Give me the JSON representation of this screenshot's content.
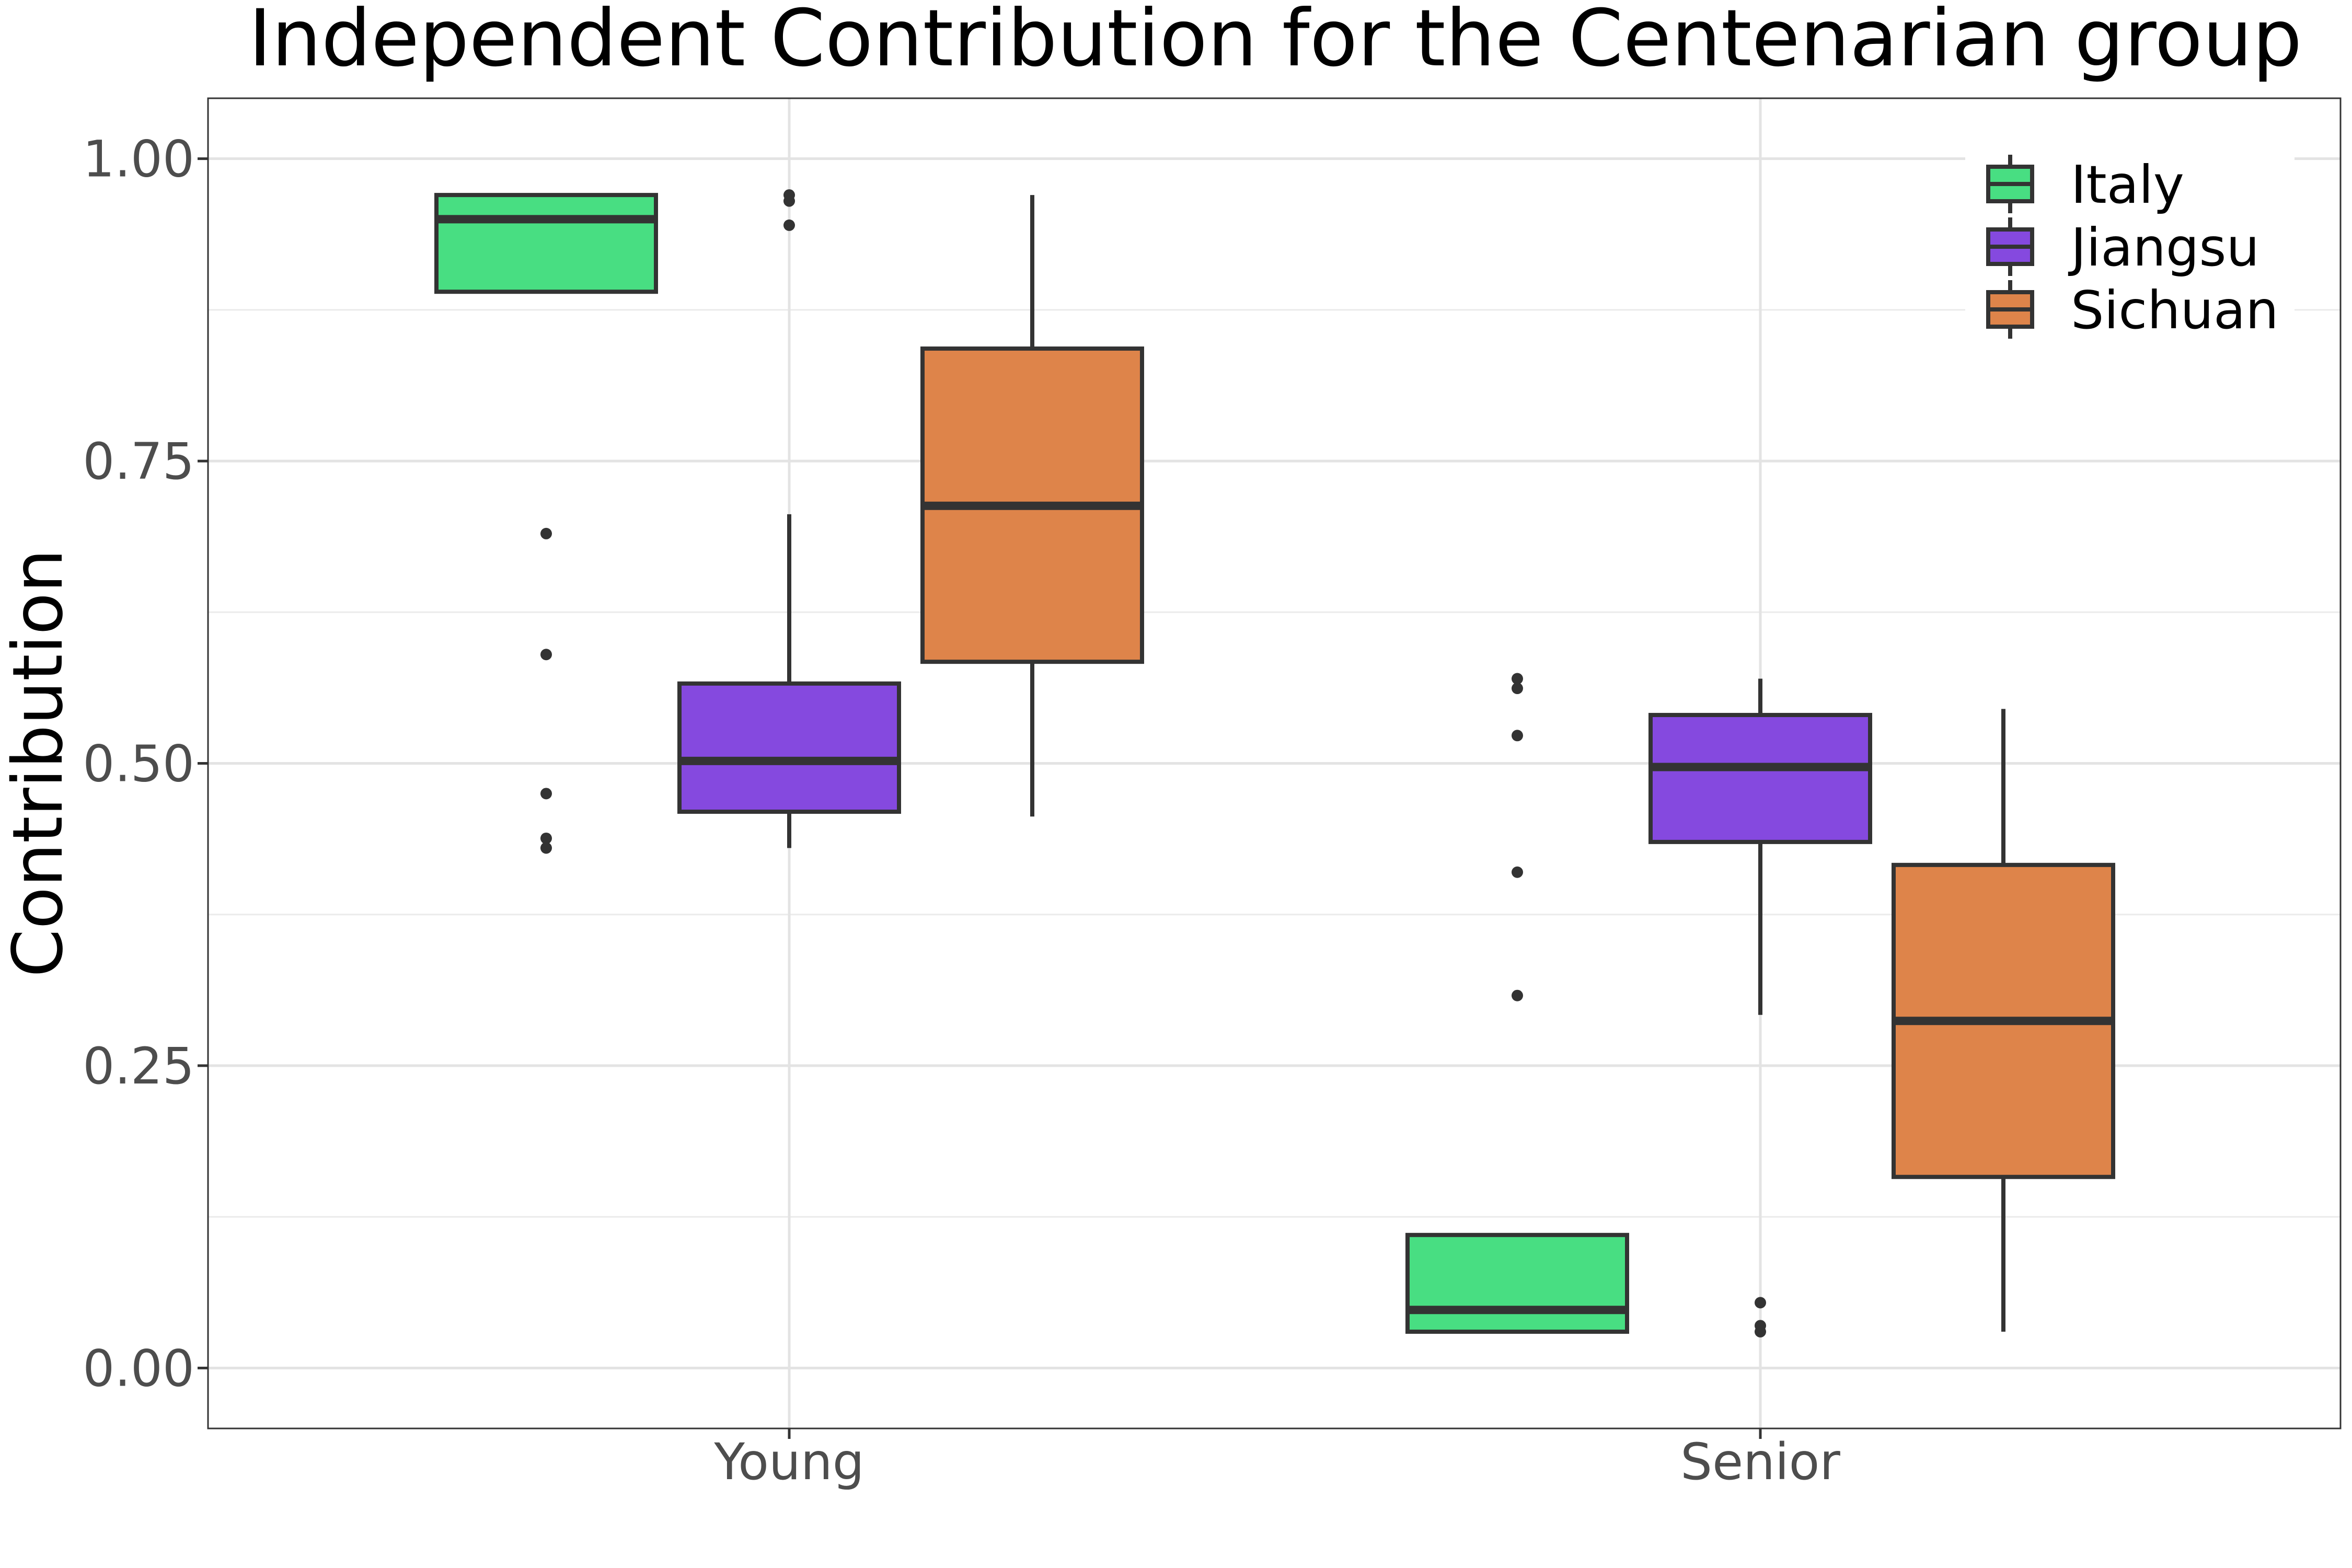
{
  "chart_data": {
    "type": "boxplot",
    "title": "Independent Contribution for the Centenarian group",
    "xlabel": "",
    "ylabel": "Contribution",
    "categories": [
      "Young",
      "Senior"
    ],
    "ylim": [
      -0.05,
      1.05
    ],
    "yticks": [
      0,
      0.25,
      0.5,
      0.75,
      1
    ],
    "ytick_labels": [
      "0.00",
      "0.25",
      "0.50",
      "0.75",
      "1.00"
    ],
    "grid": true,
    "legend_position": "top-right",
    "series": [
      {
        "name": "Italy",
        "color": "#48de82",
        "boxes": [
          {
            "q1": 0.89,
            "median": 0.95,
            "q3": 0.97,
            "whisker_low": 0.89,
            "whisker_high": 0.97,
            "outliers": [
              0.69,
              0.59,
              0.475,
              0.438,
              0.43
            ]
          },
          {
            "q1": 0.03,
            "median": 0.048,
            "q3": 0.11,
            "whisker_low": 0.03,
            "whisker_high": 0.11,
            "outliers": [
              0.57,
              0.562,
              0.523,
              0.41,
              0.308
            ]
          }
        ]
      },
      {
        "name": "Jiangsu",
        "color": "#8549df",
        "boxes": [
          {
            "q1": 0.46,
            "median": 0.502,
            "q3": 0.566,
            "whisker_low": 0.43,
            "whisker_high": 0.706,
            "outliers": [
              0.97,
              0.965,
              0.945
            ]
          },
          {
            "q1": 0.435,
            "median": 0.497,
            "q3": 0.54,
            "whisker_low": 0.292,
            "whisker_high": 0.57,
            "outliers": [
              0.054,
              0.035,
              0.03
            ]
          }
        ]
      },
      {
        "name": "Sichuan",
        "color": "#de844a",
        "boxes": [
          {
            "q1": 0.584,
            "median": 0.713,
            "q3": 0.843,
            "whisker_low": 0.456,
            "whisker_high": 0.97,
            "outliers": []
          },
          {
            "q1": 0.158,
            "median": 0.287,
            "q3": 0.416,
            "whisker_low": 0.03,
            "whisker_high": 0.545,
            "outliers": []
          }
        ]
      }
    ]
  }
}
